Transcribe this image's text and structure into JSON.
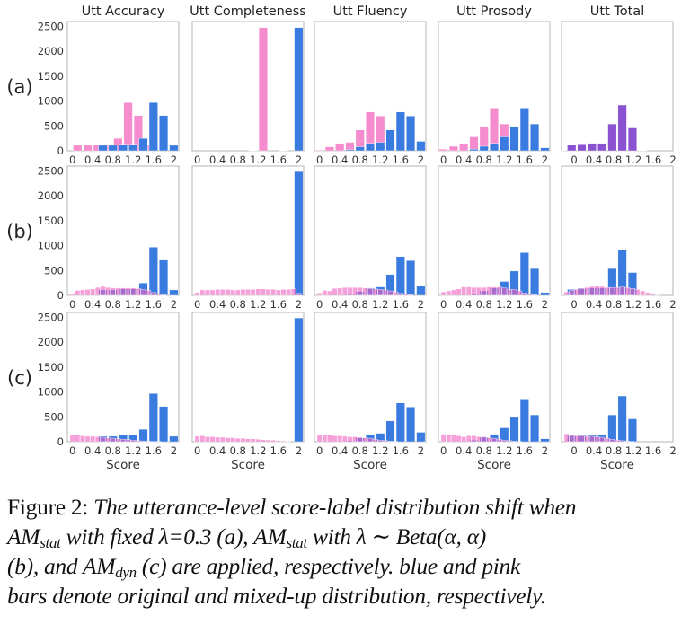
{
  "figure": {
    "row_labels": [
      "(a)",
      "(b)",
      "(c)"
    ],
    "panel_titles": [
      "Utt Accuracy",
      "Utt Completeness",
      "Utt Fluency",
      "Utt Prosody",
      "Utt Total"
    ],
    "xlabel": "Score",
    "colors": {
      "original": "#3a7be0",
      "mixed": "#f58ccd",
      "overlap": "#8e4fd0"
    }
  },
  "chart_data": {
    "type": "bar",
    "layout": "3x5 grid of histograms",
    "xlim": [
      -0.1,
      2.1
    ],
    "ylim": [
      0,
      2600
    ],
    "yticks": [
      0,
      500,
      1000,
      1500,
      2000,
      2500
    ],
    "xticks": [
      "0",
      "0.4",
      "0.8",
      "1.2",
      "1.6",
      "2"
    ],
    "total_xticks": [
      "0",
      "0.4",
      "0.8",
      "1.2",
      "1.6",
      "2"
    ],
    "legend": {
      "original": "blue bars",
      "mixed": "pink bars"
    },
    "rows": [
      {
        "label": "(a)",
        "panels": [
          {
            "title": "Utt Accuracy",
            "original": {
              "x": [
                0.6,
                0.8,
                1.0,
                1.2,
                1.4,
                1.6,
                1.8,
                2.0
              ],
              "values": [
                110,
                110,
                130,
                130,
                250,
                970,
                710,
                110
              ]
            },
            "mixed": {
              "x": [
                0.1,
                0.3,
                0.5,
                0.7,
                0.9,
                1.1,
                1.3,
                1.5
              ],
              "values": [
                110,
                110,
                130,
                130,
                250,
                970,
                710,
                110
              ]
            }
          },
          {
            "title": "Utt Completeness",
            "original": {
              "x": [
                1.7,
                2.0
              ],
              "values": [
                5,
                2480
              ]
            },
            "mixed": {
              "x": [
                1.1,
                1.3
              ],
              "values": [
                5,
                2480
              ]
            }
          },
          {
            "title": "Utt Fluency",
            "original": {
              "x": [
                0.6,
                0.8,
                1.0,
                1.2,
                1.4,
                1.6,
                1.8,
                2.0
              ],
              "values": [
                20,
                80,
                150,
                170,
                420,
                780,
                700,
                190
              ]
            },
            "mixed": {
              "x": [
                0.0,
                0.2,
                0.4,
                0.6,
                0.8,
                1.0,
                1.2,
                1.4,
                1.6
              ],
              "values": [
                15,
                80,
                150,
                170,
                420,
                780,
                700,
                190,
                0
              ]
            }
          },
          {
            "title": "Utt Prosody",
            "original": {
              "x": [
                0.6,
                0.8,
                1.0,
                1.2,
                1.4,
                1.6,
                1.8,
                2.0
              ],
              "values": [
                30,
                90,
                150,
                280,
                490,
                860,
                540,
                60
              ]
            },
            "mixed": {
              "x": [
                0.0,
                0.2,
                0.4,
                0.6,
                0.8,
                1.0,
                1.2,
                1.4,
                1.6
              ],
              "values": [
                30,
                90,
                150,
                280,
                490,
                860,
                540,
                60,
                0
              ]
            }
          },
          {
            "title": "Utt Total",
            "original": {
              "x": [
                -0.1,
                0.1,
                0.3,
                0.5,
                0.7,
                0.9,
                1.1,
                1.3,
                1.5
              ],
              "values": [
                5,
                120,
                140,
                150,
                150,
                540,
                920,
                460,
                5
              ]
            },
            "mixed": {
              "x": [
                0.1,
                0.3,
                0.5,
                0.7,
                0.9,
                1.1,
                1.3
              ],
              "values": [
                120,
                140,
                150,
                150,
                540,
                920,
                460
              ]
            }
          }
        ]
      },
      {
        "label": "(b)",
        "panels": [
          {
            "title": "Utt Accuracy",
            "original": {
              "x": [
                0.6,
                0.8,
                1.0,
                1.2,
                1.4,
                1.6,
                1.8,
                2.0
              ],
              "values": [
                110,
                110,
                130,
                130,
                250,
                970,
                710,
                110
              ]
            },
            "mixed": {
              "x": [
                0.0,
                0.1,
                0.2,
                0.3,
                0.4,
                0.5,
                0.6,
                0.7,
                0.8,
                0.9,
                1.0,
                1.1,
                1.2,
                1.3,
                1.4,
                1.5,
                1.6,
                1.7,
                1.8
              ],
              "values": [
                40,
                100,
                110,
                120,
                130,
                160,
                180,
                160,
                150,
                150,
                150,
                150,
                150,
                140,
                120,
                100,
                60,
                30,
                10
              ]
            }
          },
          {
            "title": "Utt Completeness",
            "original": {
              "x": [
                2.0
              ],
              "values": [
                2490
              ]
            },
            "mixed": {
              "x": [
                0.0,
                0.1,
                0.2,
                0.3,
                0.4,
                0.5,
                0.6,
                0.7,
                0.8,
                0.9,
                1.0,
                1.1,
                1.2,
                1.3,
                1.4,
                1.5,
                1.6,
                1.7,
                1.8,
                1.9,
                2.0
              ],
              "values": [
                60,
                110,
                110,
                110,
                120,
                120,
                120,
                110,
                110,
                120,
                120,
                120,
                130,
                130,
                120,
                120,
                110,
                120,
                120,
                130,
                40
              ]
            }
          },
          {
            "title": "Utt Fluency",
            "original": {
              "x": [
                0.6,
                0.8,
                1.0,
                1.2,
                1.4,
                1.6,
                1.8,
                2.0
              ],
              "values": [
                20,
                80,
                150,
                170,
                420,
                780,
                700,
                190
              ]
            },
            "mixed": {
              "x": [
                0.0,
                0.1,
                0.2,
                0.3,
                0.4,
                0.5,
                0.6,
                0.7,
                0.8,
                0.9,
                1.0,
                1.1,
                1.2,
                1.3,
                1.4,
                1.5,
                1.6,
                1.7,
                1.8
              ],
              "values": [
                50,
                100,
                90,
                140,
                150,
                160,
                160,
                160,
                160,
                150,
                140,
                130,
                120,
                110,
                90,
                70,
                40,
                20,
                10
              ]
            }
          },
          {
            "title": "Utt Prosody",
            "original": {
              "x": [
                0.6,
                0.8,
                1.0,
                1.2,
                1.4,
                1.6,
                1.8,
                2.0
              ],
              "values": [
                30,
                90,
                150,
                280,
                490,
                860,
                540,
                60
              ]
            },
            "mixed": {
              "x": [
                0.0,
                0.1,
                0.2,
                0.3,
                0.4,
                0.5,
                0.6,
                0.7,
                0.8,
                0.9,
                1.0,
                1.1,
                1.2,
                1.3,
                1.4,
                1.5,
                1.6,
                1.7,
                1.8
              ],
              "values": [
                70,
                90,
                110,
                130,
                170,
                170,
                160,
                160,
                160,
                170,
                170,
                170,
                150,
                120,
                120,
                90,
                50,
                20,
                10
              ]
            }
          },
          {
            "title": "Utt Total",
            "original": {
              "x": [
                0.1,
                0.3,
                0.5,
                0.7,
                0.9,
                1.1,
                1.3
              ],
              "values": [
                120,
                140,
                150,
                150,
                540,
                920,
                460
              ]
            },
            "mixed": {
              "x": [
                0.0,
                0.1,
                0.2,
                0.3,
                0.4,
                0.5,
                0.6,
                0.7,
                0.8,
                0.9,
                1.0,
                1.1,
                1.2,
                1.3,
                1.4,
                1.5,
                1.6,
                1.7,
                1.8
              ],
              "values": [
                70,
                100,
                120,
                140,
                160,
                180,
                190,
                180,
                160,
                160,
                160,
                170,
                160,
                140,
                120,
                90,
                60,
                30,
                10
              ]
            }
          }
        ]
      },
      {
        "label": "(c)",
        "panels": [
          {
            "title": "Utt Accuracy",
            "original": {
              "x": [
                0.6,
                0.8,
                1.0,
                1.2,
                1.4,
                1.6,
                1.8,
                2.0
              ],
              "values": [
                110,
                110,
                130,
                130,
                250,
                970,
                710,
                110
              ]
            },
            "mixed": {
              "x": [
                0.0,
                0.1,
                0.2,
                0.3,
                0.4,
                0.5,
                0.6,
                0.7,
                0.8,
                0.9,
                1.0,
                1.1,
                1.2,
                1.3,
                1.4,
                1.5,
                1.6,
                1.7
              ],
              "values": [
                140,
                150,
                120,
                110,
                110,
                100,
                90,
                80,
                70,
                60,
                50,
                40,
                30,
                20,
                15,
                10,
                5,
                5
              ]
            }
          },
          {
            "title": "Utt Completeness",
            "original": {
              "x": [
                2.0
              ],
              "values": [
                2490
              ]
            },
            "mixed": {
              "x": [
                0.0,
                0.1,
                0.2,
                0.3,
                0.4,
                0.5,
                0.6,
                0.7,
                0.8,
                0.9,
                1.0,
                1.1,
                1.2,
                1.3,
                1.4,
                1.5,
                1.6,
                1.7,
                1.8
              ],
              "values": [
                110,
                120,
                100,
                100,
                90,
                90,
                80,
                80,
                70,
                70,
                60,
                60,
                50,
                40,
                35,
                30,
                20,
                15,
                10
              ]
            }
          },
          {
            "title": "Utt Fluency",
            "original": {
              "x": [
                0.6,
                0.8,
                1.0,
                1.2,
                1.4,
                1.6,
                1.8,
                2.0
              ],
              "values": [
                20,
                80,
                150,
                170,
                420,
                780,
                700,
                190
              ]
            },
            "mixed": {
              "x": [
                0.0,
                0.1,
                0.2,
                0.3,
                0.4,
                0.5,
                0.6,
                0.7,
                0.8,
                0.9,
                1.0,
                1.1,
                1.2,
                1.3,
                1.4,
                1.5
              ],
              "values": [
                140,
                140,
                130,
                120,
                120,
                110,
                100,
                100,
                90,
                80,
                70,
                50,
                30,
                20,
                10,
                5
              ]
            }
          },
          {
            "title": "Utt Prosody",
            "original": {
              "x": [
                0.6,
                0.8,
                1.0,
                1.2,
                1.4,
                1.6,
                1.8,
                2.0
              ],
              "values": [
                30,
                90,
                150,
                280,
                490,
                860,
                540,
                60
              ]
            },
            "mixed": {
              "x": [
                0.0,
                0.1,
                0.2,
                0.3,
                0.4,
                0.5,
                0.6,
                0.7,
                0.8,
                0.9,
                1.0,
                1.1,
                1.2,
                1.3,
                1.4,
                1.5
              ],
              "values": [
                150,
                130,
                140,
                120,
                100,
                120,
                120,
                100,
                100,
                80,
                70,
                50,
                30,
                20,
                10,
                5
              ]
            }
          },
          {
            "title": "Utt Total",
            "original": {
              "x": [
                0.1,
                0.3,
                0.5,
                0.7,
                0.9,
                1.1,
                1.3
              ],
              "values": [
                120,
                140,
                150,
                150,
                540,
                920,
                460
              ]
            },
            "mixed": {
              "x": [
                0.0,
                0.1,
                0.2,
                0.3,
                0.4,
                0.5,
                0.6,
                0.7,
                0.8,
                0.9,
                1.0,
                1.1,
                1.2,
                1.3
              ],
              "values": [
                160,
                130,
                120,
                120,
                110,
                110,
                100,
                90,
                70,
                50,
                30,
                20,
                10,
                5
              ]
            }
          }
        ]
      }
    ]
  },
  "caption": {
    "label": "Figure 2:",
    "line1_rest": "The utterance-level score-label distribution shift when",
    "am": "AM",
    "stat": "stat",
    "dyn": "dyn",
    "line2_a": "with fixed λ=0.3 (a),",
    "line2_b": "with λ ∼ Beta(α, α)",
    "line3_a": "(b), and",
    "line3_b": "(c) are applied, respectively.  blue and pink",
    "line4": "bars denote original and mixed-up distribution, respectively."
  }
}
